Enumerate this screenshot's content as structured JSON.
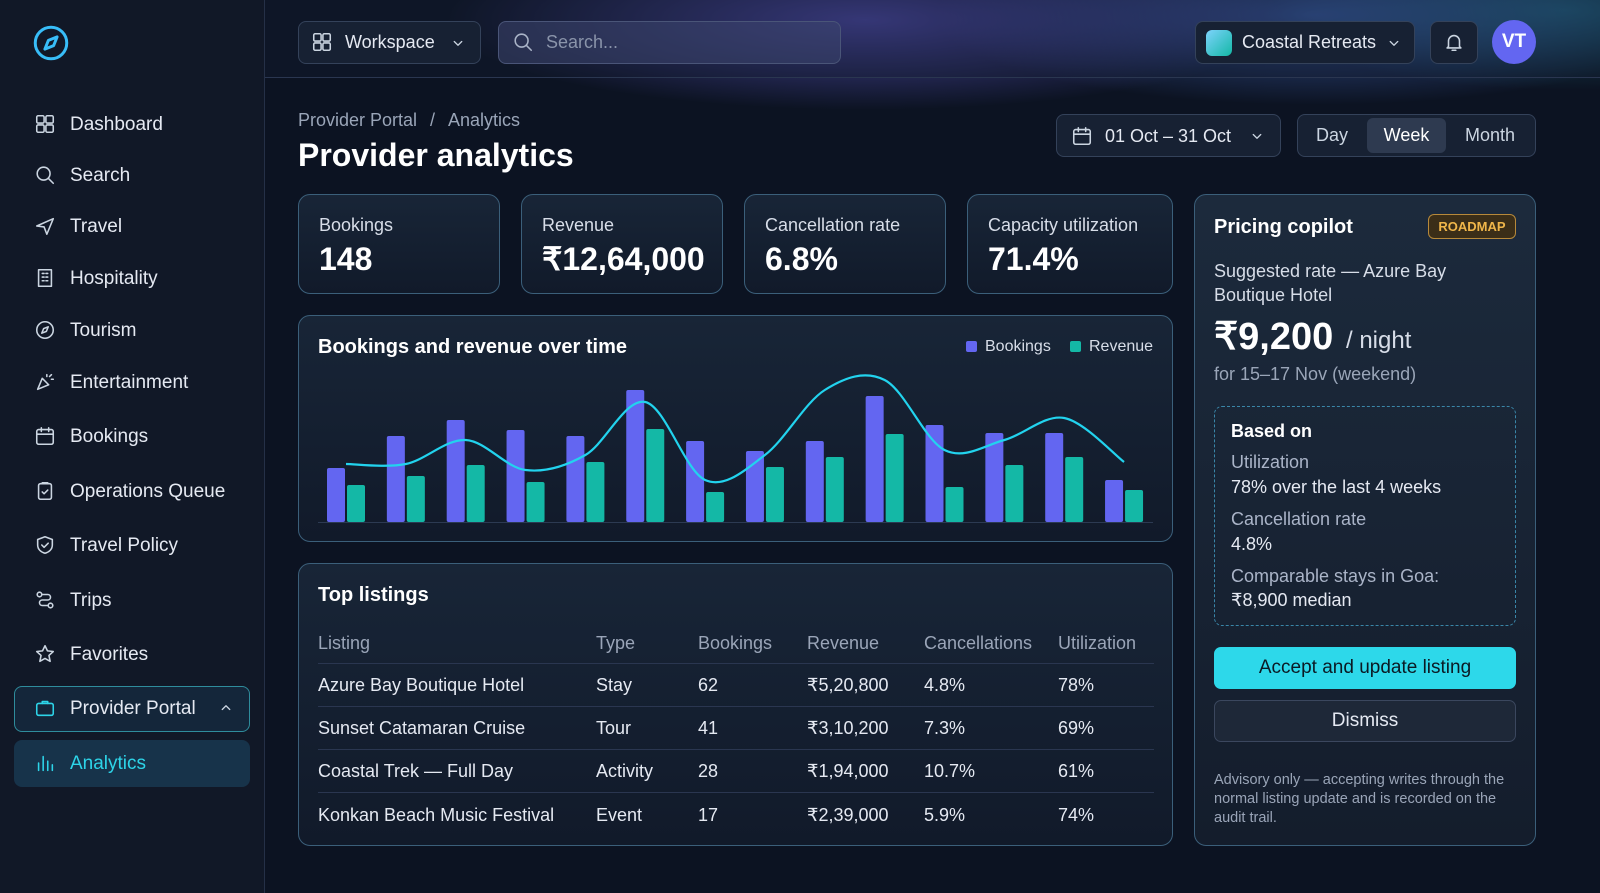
{
  "sidebar": {
    "nav": [
      "Dashboard",
      "Search",
      "Travel",
      "Hospitality",
      "Tourism",
      "Entertainment",
      "Bookings",
      "Operations Queue",
      "Travel Policy",
      "Trips",
      "Favorites",
      "Provider Portal",
      "Analytics"
    ]
  },
  "topbar": {
    "workspace": "Workspace",
    "search_placeholder": "Search...",
    "account": "Coastal Retreats",
    "avatar": "VT"
  },
  "header": {
    "breadcrumb": [
      "Provider Portal",
      "Analytics"
    ],
    "separator": "/",
    "title": "Provider analytics",
    "date_range": "01 Oct – 31 Oct",
    "periods": [
      "Day",
      "Week",
      "Month"
    ],
    "active_period": 1
  },
  "kpis": [
    {
      "label": "Bookings",
      "value": "148"
    },
    {
      "label": "Revenue",
      "value": "₹12,64,000"
    },
    {
      "label": "Cancellation rate",
      "value": "6.8%"
    },
    {
      "label": "Capacity utilization",
      "value": "71.4%"
    }
  ],
  "chart_data": {
    "type": "bar",
    "title": "Bookings and revenue over time",
    "categories": [
      null,
      null,
      null,
      null,
      null,
      null,
      null,
      null,
      null,
      null,
      null,
      null,
      null,
      null
    ],
    "series": [
      {
        "name": "Bookings",
        "color": "#6366f1",
        "values": [
          54,
          86,
          102,
          92,
          86,
          132,
          81,
          71,
          81,
          126,
          97,
          89,
          89,
          42
        ]
      },
      {
        "name": "Revenue",
        "color": "#14b8a6",
        "values": [
          37,
          46,
          57,
          40,
          60,
          93,
          30,
          55,
          65,
          88,
          35,
          57,
          65,
          32
        ]
      }
    ],
    "trend": {
      "color": "#22d3ee",
      "values": [
        58,
        58,
        82,
        52,
        67,
        120,
        42,
        67,
        132,
        142,
        72,
        82,
        104,
        60
      ]
    },
    "ylim": [
      0,
      150
    ]
  },
  "table": {
    "title": "Top listings",
    "columns": [
      "Listing",
      "Type",
      "Bookings",
      "Revenue",
      "Cancellations",
      "Utilization"
    ],
    "rows": [
      [
        "Azure Bay Boutique Hotel",
        "Stay",
        "62",
        "₹5,20,800",
        "4.8%",
        "78%"
      ],
      [
        "Sunset Catamaran Cruise",
        "Tour",
        "41",
        "₹3,10,200",
        "7.3%",
        "69%"
      ],
      [
        "Coastal Trek — Full Day",
        "Activity",
        "28",
        "₹1,94,000",
        "10.7%",
        "61%"
      ],
      [
        "Konkan Beach Music Festival",
        "Event",
        "17",
        "₹2,39,000",
        "5.9%",
        "74%"
      ]
    ]
  },
  "copilot": {
    "title": "Pricing copilot",
    "badge": "ROADMAP",
    "subtitle": "Suggested rate — Azure Bay Boutique Hotel",
    "price": "₹9,200",
    "unit": "/ night",
    "dates": "for 15–17 Nov (weekend)",
    "basis": {
      "title": "Based on",
      "items": [
        {
          "label": "Utilization",
          "value": "78% over the last 4 weeks"
        },
        {
          "label": "Cancellation rate",
          "value": "4.8%"
        },
        {
          "label": "Comparable stays in Goa:",
          "value": "₹8,900 median"
        }
      ]
    },
    "accept": "Accept and update listing",
    "dismiss": "Dismiss",
    "note": "Advisory only — accepting writes through the normal listing update and is recorded on the audit trail."
  }
}
